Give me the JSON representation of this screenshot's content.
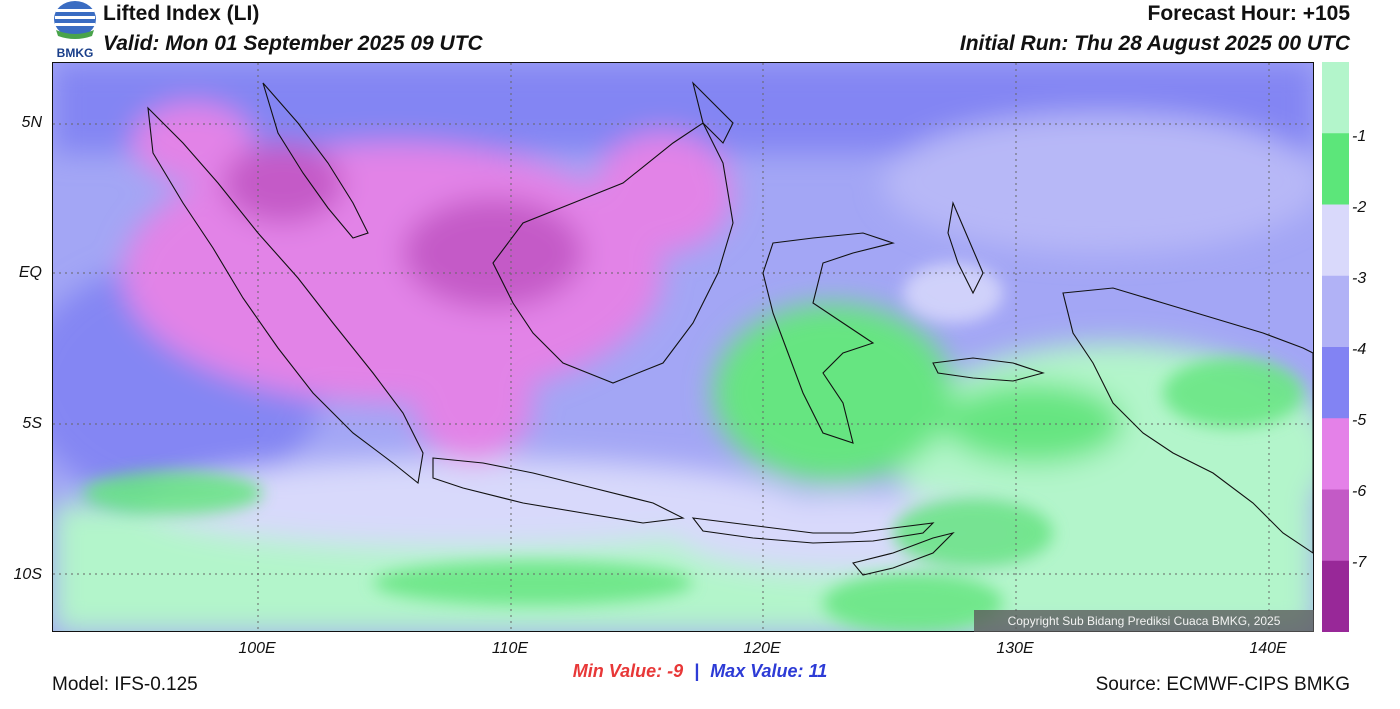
{
  "header": {
    "title": "Lifted Index (LI)",
    "valid": "Valid: Mon 01 September 2025 09 UTC",
    "forecast_hour": "Forecast Hour: +105",
    "initial_run": "Initial Run: Thu 28 August 2025 00 UTC",
    "logo_text": "BMKG"
  },
  "map": {
    "lat_labels": [
      "5N",
      "EQ",
      "5S",
      "10S"
    ],
    "lon_labels": [
      "100E",
      "110E",
      "120E",
      "130E",
      "140E"
    ],
    "copyright": "Copyright Sub Bidang Prediksi Cuaca BMKG, 2025"
  },
  "colorbar": {
    "labels": [
      "-1",
      "-2",
      "-3",
      "-4",
      "-5",
      "-6",
      "-7"
    ],
    "colors": [
      "#b3f5cb",
      "#5ce67a",
      "#d9d9fb",
      "#b1b2f6",
      "#8283f3",
      "#e481e8",
      "#c35ac6",
      "#982898"
    ]
  },
  "footer": {
    "model": "Model: IFS-0.125",
    "min_label": "Min Value:",
    "min_value": "-9",
    "separator": "|",
    "max_label": "Max Value:",
    "max_value": "11",
    "source": "Source: ECMWF-CIPS BMKG"
  }
}
